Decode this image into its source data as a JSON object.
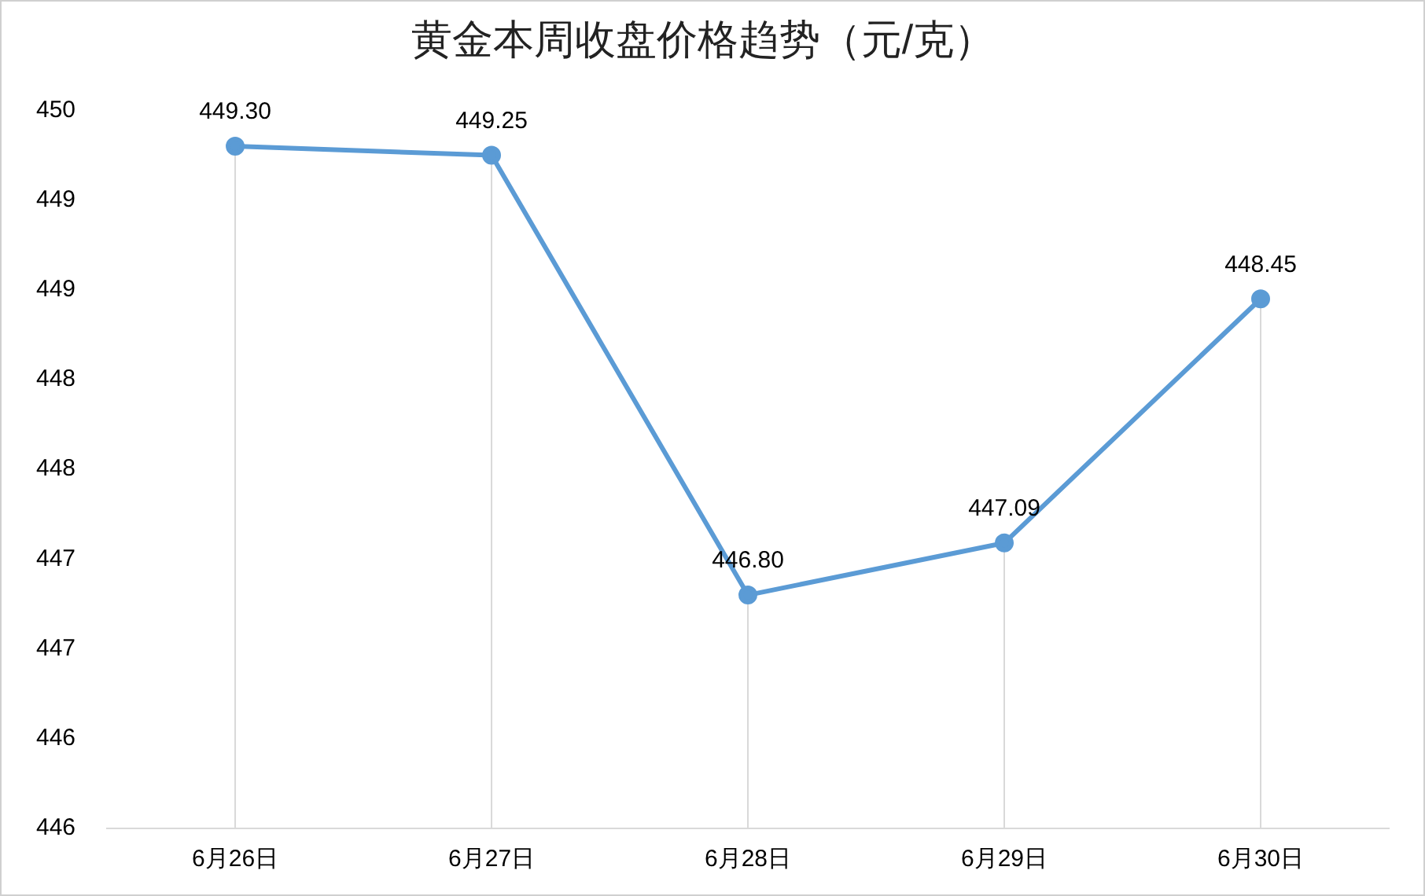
{
  "chart_data": {
    "type": "line",
    "title": "黄金本周收盘价格趋势（元/克）",
    "categories": [
      "6月26日",
      "6月27日",
      "6月28日",
      "6月29日",
      "6月30日"
    ],
    "series": [
      {
        "color": "#5b9bd5",
        "values": [
          449.3,
          449.25,
          446.8,
          447.09,
          448.45
        ],
        "value_labels": [
          "449.30",
          "449.25",
          "446.80",
          "447.09",
          "448.45"
        ]
      }
    ],
    "ylim": [
      445.5,
      449.5
    ],
    "yticks": [
      {
        "value": 445.5,
        "label": "446"
      },
      {
        "value": 446,
        "label": "446"
      },
      {
        "value": 446.5,
        "label": "447"
      },
      {
        "value": 447,
        "label": "447"
      },
      {
        "value": 447.5,
        "label": "448"
      },
      {
        "value": 448,
        "label": "448"
      },
      {
        "value": 448.5,
        "label": "449"
      },
      {
        "value": 449,
        "label": "449"
      },
      {
        "value": 449.5,
        "label": "450"
      }
    ],
    "grid": "x",
    "legend": false,
    "marker": "circle",
    "line_style": "solid"
  }
}
